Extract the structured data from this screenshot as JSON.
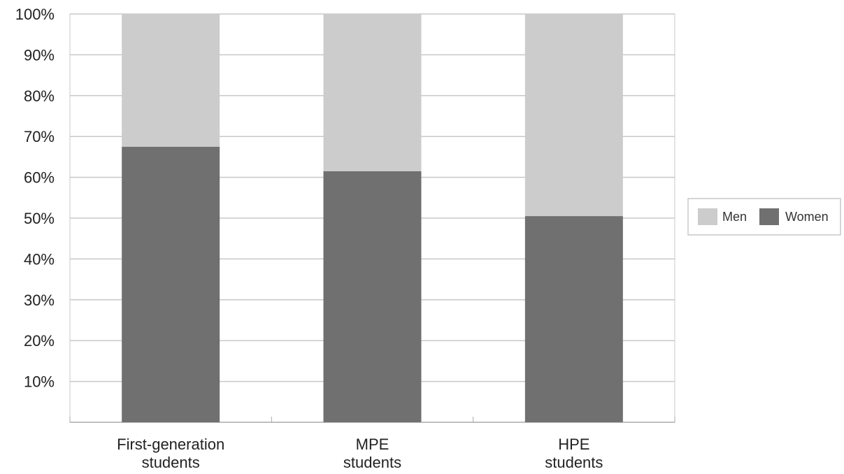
{
  "chart_data": {
    "type": "bar",
    "stacked": true,
    "categories": [
      [
        "First-generation",
        "students"
      ],
      [
        "MPE",
        "students"
      ],
      [
        "HPE",
        "students"
      ]
    ],
    "series": [
      {
        "name": "Women",
        "values": [
          67.5,
          61.5,
          50.5
        ],
        "color": "#707070"
      },
      {
        "name": "Men",
        "values": [
          32.5,
          38.5,
          49.5
        ],
        "color": "#cccccc"
      }
    ],
    "y_ticks": [
      "10%",
      "20%",
      "30%",
      "40%",
      "50%",
      "60%",
      "70%",
      "80%",
      "90%",
      "100%"
    ],
    "ylim": [
      0,
      100
    ],
    "grid": true,
    "legend": {
      "placement": "right",
      "entries": [
        {
          "name": "Men",
          "color": "#cccccc"
        },
        {
          "name": "Women",
          "color": "#707070"
        }
      ]
    }
  }
}
